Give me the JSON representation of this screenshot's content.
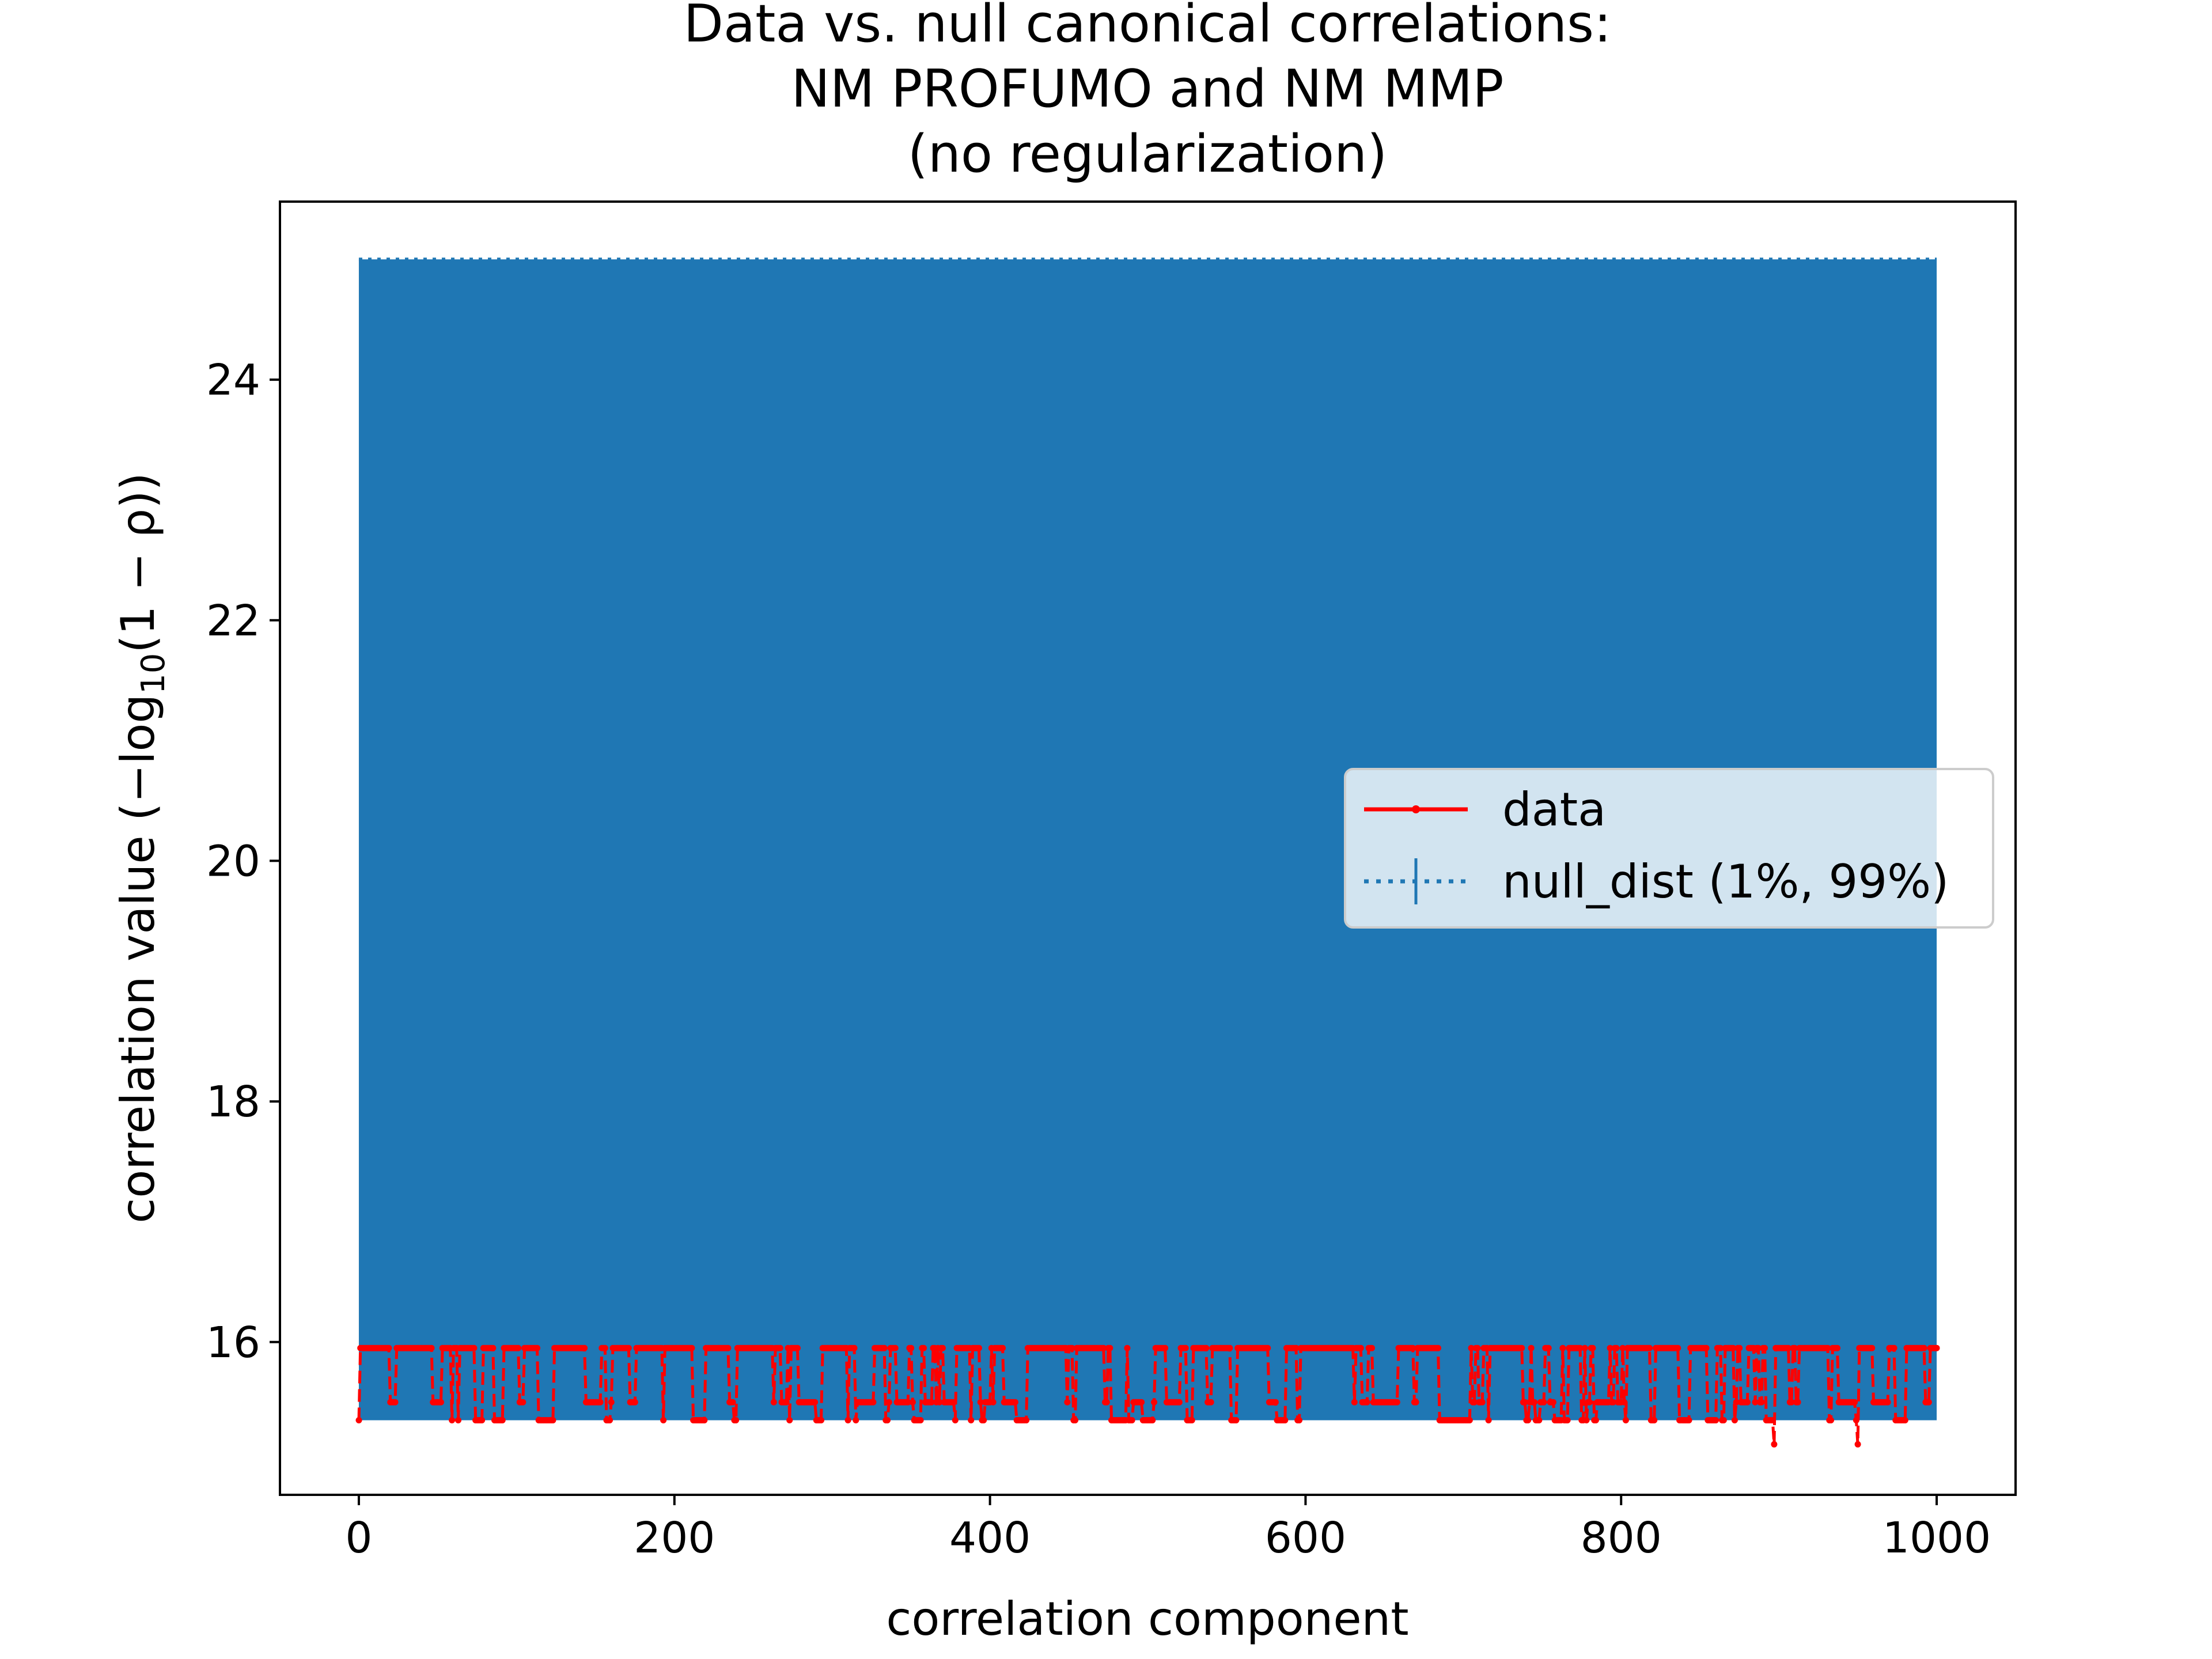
{
  "chart_data": {
    "type": "line",
    "title": "Data vs. null canonical correlations:",
    "subtitle_lines": [
      "NM PROFUMO and NM MMP",
      "(no regularization)"
    ],
    "xlabel": "correlation component",
    "ylabel_prefix": "correlation value (−log",
    "ylabel_sub": "10",
    "ylabel_suffix": "(1 − ρ))",
    "xlim": [
      -50,
      1050
    ],
    "ylim": [
      14.73,
      25.48
    ],
    "xticks": [
      0,
      200,
      400,
      600,
      800,
      1000
    ],
    "yticks": [
      16,
      18,
      20,
      22,
      24
    ],
    "grid": false,
    "legend_position": "center-right",
    "legend": [
      "data",
      "null_dist (1%, 99%)"
    ],
    "colors": {
      "data": "#ff0000",
      "null": "#1f77b4"
    },
    "series": [
      {
        "name": "null_dist (1%, 99%)",
        "style": "dotted line with error bars",
        "x_range": [
          0,
          1000
        ],
        "lower_1pct": 15.35,
        "upper_99pct": 25.0
      },
      {
        "name": "data",
        "style": "red line with point markers",
        "levels": [
          15.35,
          15.5,
          15.95
        ],
        "outlier_points": [
          {
            "x": 897,
            "y": 15.15
          },
          {
            "x": 950,
            "y": 15.15
          }
        ]
      }
    ]
  }
}
